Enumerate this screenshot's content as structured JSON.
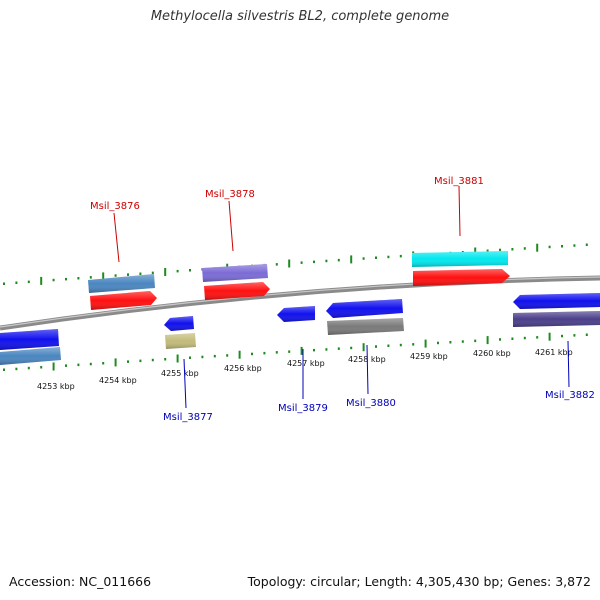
{
  "title": "Methylocella silvestris BL2, complete genome",
  "footer": {
    "accession": "Accession: NC_011666",
    "summary": "Topology: circular; Length: 4,305,430 bp; Genes: 3,872"
  },
  "colors": {
    "backbone": "#8a8a8a",
    "tick": "#1f8a1f",
    "upper_label": "#cc0000",
    "lower_label": "#0000bb"
  },
  "ticks": [
    "4253 kbp",
    "4254 kbp",
    "4255 kbp",
    "4256 kbp",
    "4257 kbp",
    "4258 kbp",
    "4259 kbp",
    "4260 kbp",
    "4261 kbp"
  ],
  "genes_top": [
    {
      "name": "Msil_3876",
      "color": "#ff1010",
      "partner_color": "#4a86c0"
    },
    {
      "name": "Msil_3878",
      "color": "#ff1010",
      "partner_color": "#7b6bd6"
    },
    {
      "name": "Msil_3881",
      "color": "#ff1010",
      "partner_color": "#00e8ee"
    }
  ],
  "genes_bottom": [
    {
      "name": "Msil_3877",
      "color": "#1010ee",
      "partner_color": "#c2bb7a"
    },
    {
      "name": "Msil_3879",
      "color": "#1010ee"
    },
    {
      "name": "Msil_3880",
      "color": "#1010ee",
      "partner_color": "#7a7a7a"
    },
    {
      "name": "Msil_3882",
      "color": "#1010ee",
      "partner_color": "#4a3f8a"
    }
  ],
  "genes_offscreen_left": {
    "color": "#1010ee",
    "partner_color": "#4a86c0"
  }
}
